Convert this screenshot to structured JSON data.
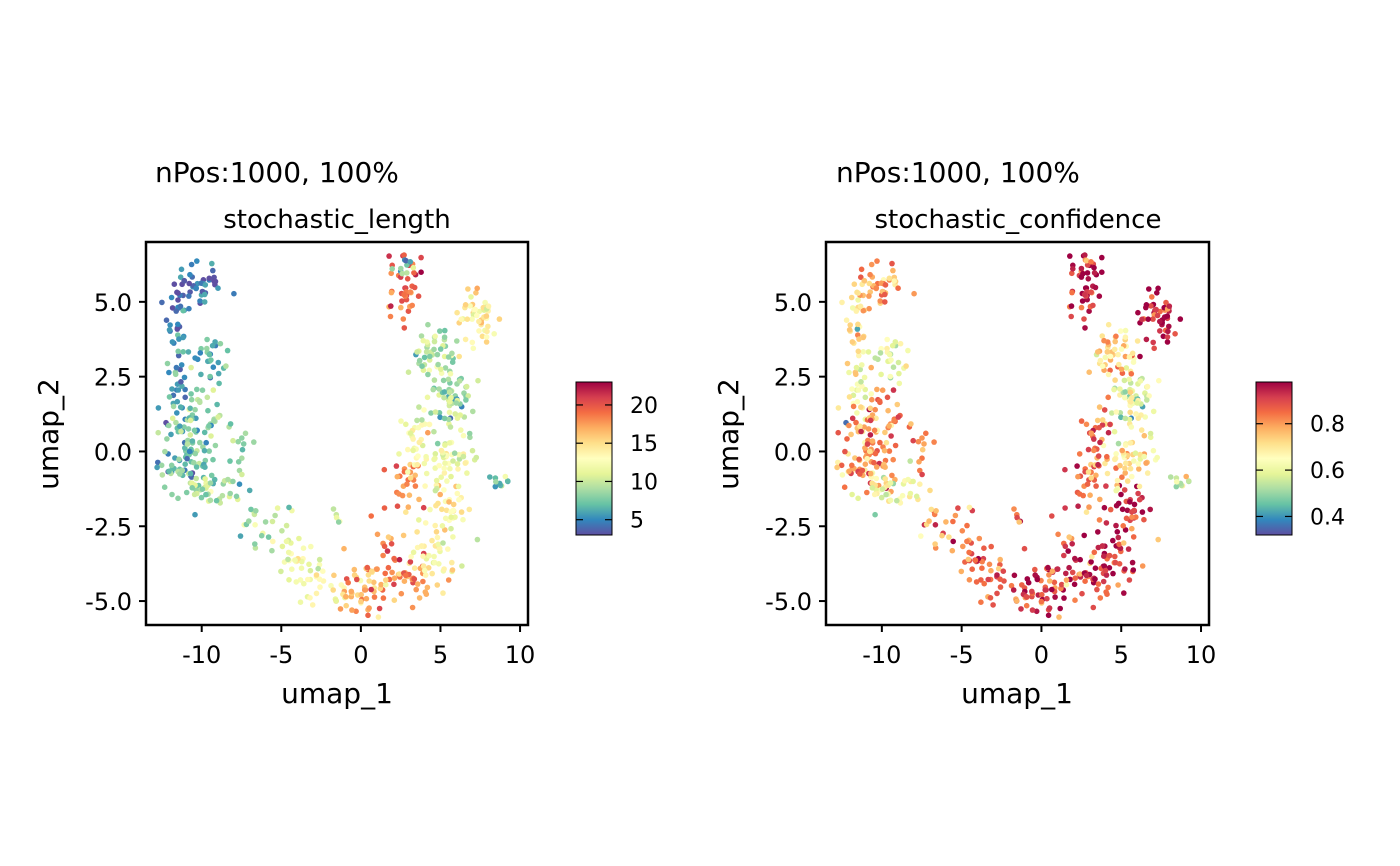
{
  "chart_data": [
    {
      "type": "scatter",
      "title": "nPos:1000, 100%",
      "subtitle": "stochastic_length",
      "xlabel": "umap_1",
      "ylabel": "umap_2",
      "xlim": [
        -13.5,
        10.5
      ],
      "ylim": [
        -5.8,
        7.0
      ],
      "xticks": [
        -10,
        -5,
        0,
        5,
        10
      ],
      "xtick_labels": [
        "-10",
        "-5",
        "0",
        "5",
        "10"
      ],
      "yticks": [
        5.0,
        2.5,
        0.0,
        -2.5,
        -5.0
      ],
      "ytick_labels": [
        "5.0",
        "2.5",
        "0.0",
        "-2.5",
        "-5.0"
      ],
      "color_scale": {
        "palette": "Spectral (reversed)",
        "colors": [
          "#5E4FA2",
          "#3288BD",
          "#66C2A5",
          "#ABDDA4",
          "#E6F598",
          "#FFFFBF",
          "#FEE08B",
          "#FDAE61",
          "#F46D43",
          "#D53E4F",
          "#9E0142"
        ],
        "range": [
          3,
          23
        ],
        "ticks": [
          20,
          15,
          10,
          5
        ],
        "tick_labels": [
          "20",
          "15",
          "10",
          "5"
        ]
      },
      "n_points": 1000,
      "grid": false,
      "legend_position": "right"
    },
    {
      "type": "scatter",
      "title": "nPos:1000, 100%",
      "subtitle": "stochastic_confidence",
      "xlabel": "umap_1",
      "ylabel": "umap_2",
      "xlim": [
        -13.5,
        10.5
      ],
      "ylim": [
        -5.8,
        7.0
      ],
      "xticks": [
        -10,
        -5,
        0,
        5,
        10
      ],
      "xtick_labels": [
        "-10",
        "-5",
        "0",
        "5",
        "10"
      ],
      "yticks": [
        5.0,
        2.5,
        0.0,
        -2.5,
        -5.0
      ],
      "ytick_labels": [
        "5.0",
        "2.5",
        "0.0",
        "-2.5",
        "-5.0"
      ],
      "color_scale": {
        "palette": "Spectral (reversed)",
        "colors": [
          "#5E4FA2",
          "#3288BD",
          "#66C2A5",
          "#ABDDA4",
          "#E6F598",
          "#FFFFBF",
          "#FEE08B",
          "#FDAE61",
          "#F46D43",
          "#D53E4F",
          "#9E0142"
        ],
        "range": [
          0.32,
          0.98
        ],
        "ticks": [
          0.8,
          0.6,
          0.4
        ],
        "tick_labels": [
          "0.8",
          "0.6",
          "0.4"
        ]
      },
      "n_points": 1000,
      "grid": false,
      "legend_position": "right"
    }
  ]
}
